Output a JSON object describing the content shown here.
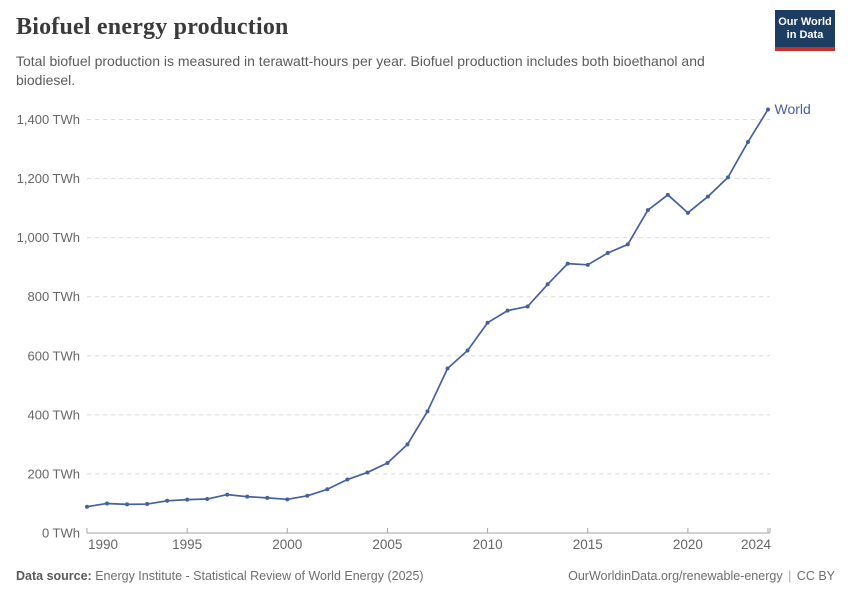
{
  "header": {
    "title": "Biofuel energy production",
    "subtitle": "Total biofuel production is measured in terawatt-hours per year. Biofuel production includes both bioethanol and biodiesel.",
    "logo": {
      "line1": "Our World",
      "line2": "in Data"
    }
  },
  "colors": {
    "line": "#44609f",
    "grid": "#dcdcdc",
    "axis": "#a5a5a5",
    "tick_text": "#666666",
    "logo_navy": "#1d3d63",
    "logo_red": "#c5302e"
  },
  "chart_data": {
    "type": "line",
    "title": "Biofuel energy production",
    "unit": "TWh",
    "ylabel": "TWh",
    "xlabel": "",
    "xlim": [
      1990,
      2024
    ],
    "ylim": [
      0,
      1450
    ],
    "grid": "horizontal-dashed",
    "legend_position": "end-of-line-label",
    "x_ticks": [
      1990,
      1995,
      2000,
      2005,
      2010,
      2015,
      2020,
      2024
    ],
    "y_ticks": [
      0,
      200,
      400,
      600,
      800,
      1000,
      1200,
      1400
    ],
    "y_tick_suffix": " TWh",
    "series": [
      {
        "name": "World",
        "color": "#44609f",
        "x": [
          1990,
          1991,
          1992,
          1993,
          1994,
          1995,
          1996,
          1997,
          1998,
          1999,
          2000,
          2001,
          2002,
          2003,
          2004,
          2005,
          2006,
          2007,
          2008,
          2009,
          2010,
          2011,
          2012,
          2013,
          2014,
          2015,
          2016,
          2017,
          2018,
          2019,
          2020,
          2021,
          2022,
          2023,
          2024
        ],
        "values": [
          89,
          100,
          97,
          98,
          109,
          113,
          115,
          130,
          123,
          119,
          114,
          126,
          148,
          181,
          205,
          237,
          300,
          412,
          557,
          618,
          712,
          753,
          767,
          842,
          912,
          908,
          948,
          977,
          1093,
          1145,
          1084,
          1139,
          1204,
          1324,
          1434
        ]
      }
    ]
  },
  "footer": {
    "source_label": "Data source:",
    "source_text": " Energy Institute - Statistical Review of World Energy (2025)",
    "link": "OurWorldinData.org/renewable-energy",
    "separator": "|",
    "license": "CC BY"
  }
}
